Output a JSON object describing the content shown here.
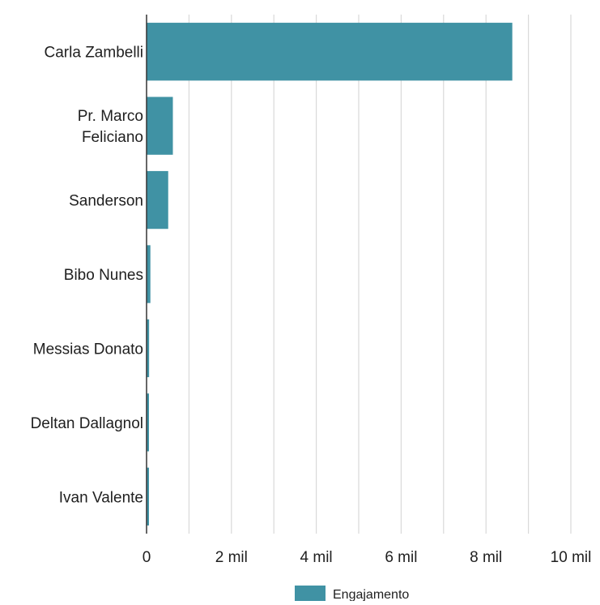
{
  "chart_data": {
    "type": "bar",
    "orientation": "horizontal",
    "categories": [
      [
        "Carla Zambelli"
      ],
      [
        "Pr. Marco",
        "Feliciano"
      ],
      [
        "Sanderson"
      ],
      [
        "Bibo Nunes"
      ],
      [
        "Messias Donato"
      ],
      [
        "Deltan Dallagnol"
      ],
      [
        "Ivan Valente"
      ]
    ],
    "values": [
      8620,
      620,
      510,
      90,
      60,
      55,
      50
    ],
    "xlim": [
      0,
      10000
    ],
    "x_ticks": [
      0,
      2000,
      4000,
      6000,
      8000,
      10000
    ],
    "x_tick_labels": [
      "0",
      "2 mil",
      "4 mil",
      "6 mil",
      "8 mil",
      "10 mil"
    ],
    "series": [
      {
        "name": "Engajamento",
        "color": "#4092a4"
      }
    ],
    "grid": true,
    "legend_position": "bottom-center",
    "colors": {
      "bar": "#4092a4",
      "grid": "#d9d9d9",
      "axis": "#333333"
    }
  }
}
